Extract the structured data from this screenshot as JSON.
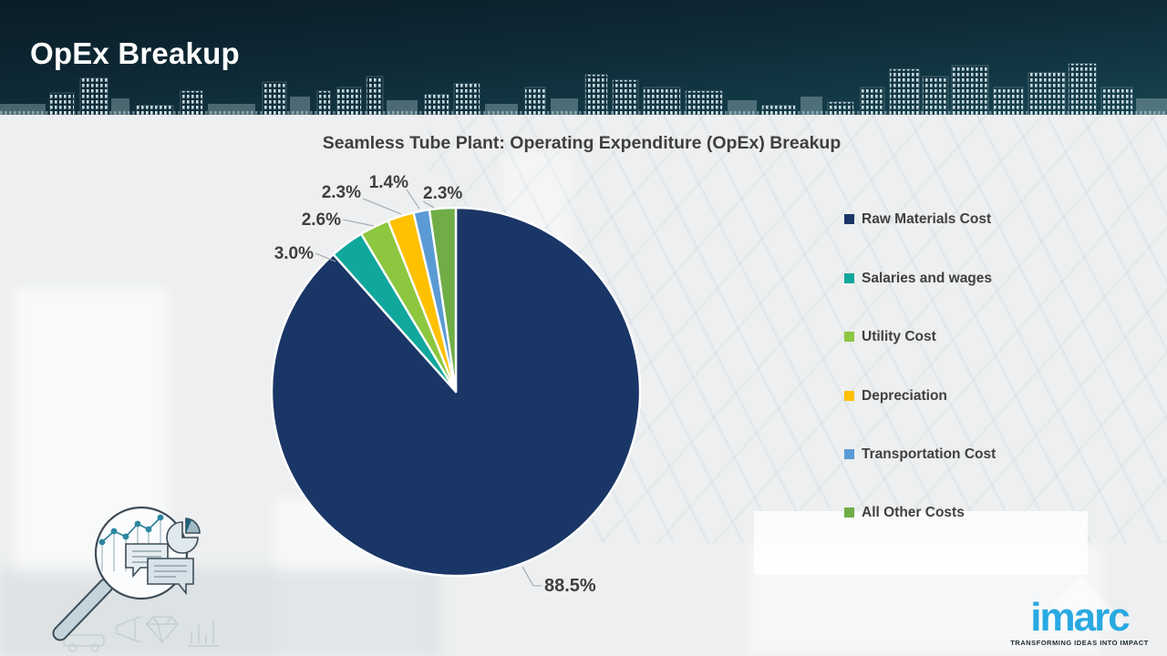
{
  "header": {
    "title": "OpEx Breakup"
  },
  "chart_data": {
    "type": "pie",
    "title": "Seamless Tube Plant: Operating Expenditure (OpEx) Breakup",
    "labels": [
      "Raw Materials Cost",
      "Salaries and wages",
      "Utility Cost",
      "Depreciation",
      "Transportation Cost",
      "All Other Costs"
    ],
    "values": [
      88.5,
      3.0,
      2.6,
      2.3,
      1.4,
      2.3
    ],
    "value_labels": [
      "88.5%",
      "3.0%",
      "2.6%",
      "2.3%",
      "1.4%",
      "2.3%"
    ],
    "colors": [
      "#1a3666",
      "#10a79c",
      "#8dc63f",
      "#ffc000",
      "#5b9bd5",
      "#70ad47"
    ],
    "slice_border_color": "#ffffff",
    "label_color": "#3f3f3f",
    "legend_position": "right",
    "start_angle_deg": 0,
    "direction": "clockwise"
  },
  "branding": {
    "logo_text": "imarc",
    "logo_tagline": "TRANSFORMING IDEAS INTO IMPACT",
    "logo_color": "#29a9e1"
  },
  "icons": {
    "skyline": "city-skyline-silhouette",
    "magnifier": "magnifier-analytics-illustration"
  },
  "colors": {
    "header_bg": "#0e2a36",
    "body_bg": "#edeff0",
    "text": "#3f3f3f"
  }
}
